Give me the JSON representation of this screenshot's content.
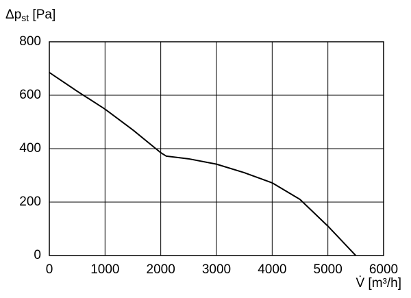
{
  "chart_data": {
    "type": "line",
    "y_label": [
      "Δp",
      "st",
      " [Pa]"
    ],
    "x_label": "V̇ [m³/h]",
    "x": [
      0,
      500,
      1000,
      1500,
      2000,
      2100,
      2500,
      3000,
      3500,
      4000,
      4500,
      5000,
      5500
    ],
    "series": [
      {
        "color": "#000000",
        "values": [
          685,
          615,
          548,
          470,
          385,
          372,
          362,
          342,
          310,
          272,
          210,
          110,
          0
        ]
      }
    ],
    "xlim": [
      0,
      6000
    ],
    "xticks": [
      0,
      1000,
      2000,
      3000,
      4000,
      5000,
      6000
    ],
    "ylim": [
      0,
      800
    ],
    "yticks": [
      0,
      200,
      400,
      600,
      800
    ],
    "grid": true
  }
}
